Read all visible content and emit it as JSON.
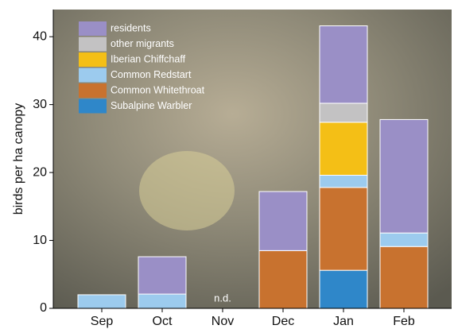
{
  "chart_data": {
    "type": "stacked-bar",
    "y_label": "birds per ha canopy",
    "categories": [
      "Sep",
      "Oct",
      "Nov",
      "Dec",
      "Jan",
      "Feb"
    ],
    "series": [
      {
        "name": "Subalpine Warbler",
        "color": "#2f87c9",
        "values": [
          0,
          0,
          null,
          0,
          5.6,
          0
        ]
      },
      {
        "name": "Common Whitethroat",
        "color": "#c8722f",
        "values": [
          0,
          0,
          null,
          8.5,
          12.2,
          9.1
        ]
      },
      {
        "name": "Common Redstart",
        "color": "#9ccbee",
        "values": [
          2.0,
          2.1,
          null,
          0,
          1.8,
          2.0
        ]
      },
      {
        "name": "Iberian Chiffchaff",
        "color": "#f4bf16",
        "values": [
          0,
          0,
          null,
          0,
          7.8,
          0
        ]
      },
      {
        "name": "other migrants",
        "color": "#c3c2c3",
        "values": [
          0,
          0,
          null,
          0,
          2.8,
          0
        ]
      },
      {
        "name": "residents",
        "color": "#9a8fc6",
        "values": [
          0,
          5.5,
          null,
          8.7,
          11.4,
          16.7
        ]
      }
    ],
    "annotation": "n.d.",
    "ylim": [
      0,
      44
    ],
    "yticks": [
      0,
      10,
      20,
      30,
      40
    ]
  }
}
